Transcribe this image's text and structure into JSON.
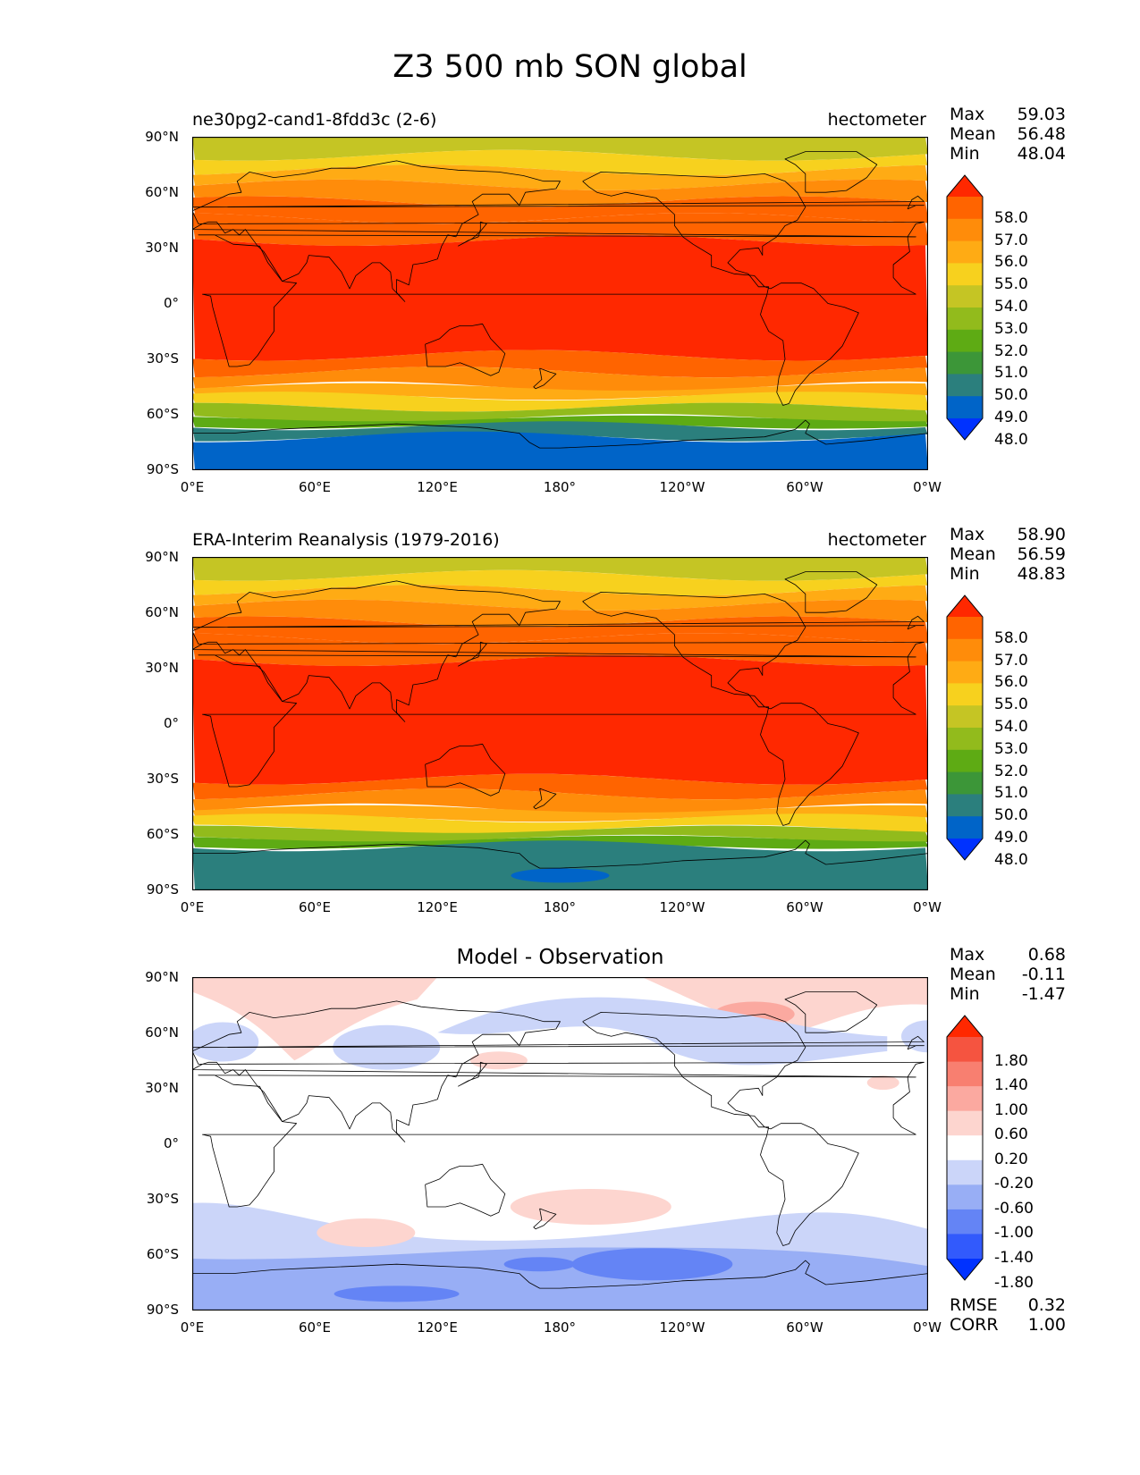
{
  "figure": {
    "title": "Z3 500 mb SON global"
  },
  "axes": {
    "lat_ticks": [
      "90°N",
      "60°N",
      "30°N",
      "0°",
      "30°S",
      "60°S",
      "90°S"
    ],
    "lon_ticks": [
      "0°E",
      "60°E",
      "120°E",
      "180°",
      "120°W",
      "60°W",
      "0°W"
    ]
  },
  "colorbars": {
    "abs": {
      "levels": [
        "58.0",
        "57.0",
        "56.0",
        "55.0",
        "54.0",
        "53.0",
        "52.0",
        "51.0",
        "50.0",
        "49.0",
        "48.0"
      ],
      "colors": [
        "#0032ff",
        "#0064c8",
        "#2b7f7d",
        "#3c9638",
        "#5eab14",
        "#92bb1c",
        "#c5c524",
        "#f7d11e",
        "#ffab14",
        "#ff8c0a",
        "#ff6400",
        "#ff2800"
      ]
    },
    "diff": {
      "levels": [
        "1.80",
        "1.40",
        "1.00",
        "0.60",
        "0.20",
        "-0.20",
        "-0.60",
        "-1.00",
        "-1.40",
        "-1.80"
      ],
      "colors": [
        "#0032ff",
        "#325afc",
        "#6484f5",
        "#98aef5",
        "#cbd5f9",
        "#ffffff",
        "#fdd5cf",
        "#fba9a0",
        "#f87f70",
        "#f55440",
        "#ff2800"
      ]
    }
  },
  "panels": [
    {
      "left_title": "ne30pg2-cand1-8fdd3c (2-6)",
      "units": "hectometer",
      "stats": {
        "max_label": "Max",
        "max": "59.03",
        "mean_label": "Mean",
        "mean": "56.48",
        "min_label": "Min",
        "min": "48.04"
      },
      "bands": [
        {
          "lat": [
            90,
            80
          ],
          "level": 6
        },
        {
          "lat": [
            80,
            72
          ],
          "level": 7
        },
        {
          "lat": [
            72,
            64
          ],
          "level": 8
        },
        {
          "lat": [
            64,
            55
          ],
          "level": 9
        },
        {
          "lat": [
            55,
            46
          ],
          "level": 10
        },
        {
          "lat": [
            46,
            34
          ],
          "level": 10
        },
        {
          "lat": [
            34,
            -28
          ],
          "level": 11
        },
        {
          "lat": [
            -28,
            -37
          ],
          "level": 10
        },
        {
          "lat": [
            -37,
            -45
          ],
          "level": 9
        },
        {
          "lat": [
            -45,
            -50
          ],
          "level": 8
        },
        {
          "lat": [
            -50,
            -56
          ],
          "level": 7
        },
        {
          "lat": [
            -56,
            -62
          ],
          "level": 5
        },
        {
          "lat": [
            -62,
            -66
          ],
          "level": 4
        },
        {
          "lat": [
            -66,
            -72
          ],
          "level": 2
        },
        {
          "lat": [
            -72,
            -90
          ],
          "level": 1
        }
      ]
    },
    {
      "left_title": "ERA-Interim Reanalysis (1979-2016)",
      "units": "hectometer",
      "stats": {
        "max_label": "Max",
        "max": "58.90",
        "mean_label": "Mean",
        "mean": "56.59",
        "min_label": "Min",
        "min": "48.83"
      },
      "bands": [
        {
          "lat": [
            90,
            80
          ],
          "level": 6
        },
        {
          "lat": [
            80,
            72
          ],
          "level": 7
        },
        {
          "lat": [
            72,
            64
          ],
          "level": 8
        },
        {
          "lat": [
            64,
            55
          ],
          "level": 9
        },
        {
          "lat": [
            55,
            46
          ],
          "level": 10
        },
        {
          "lat": [
            46,
            34
          ],
          "level": 10
        },
        {
          "lat": [
            34,
            -30
          ],
          "level": 11
        },
        {
          "lat": [
            -30,
            -38
          ],
          "level": 10
        },
        {
          "lat": [
            -38,
            -46
          ],
          "level": 9
        },
        {
          "lat": [
            -46,
            -51
          ],
          "level": 8
        },
        {
          "lat": [
            -51,
            -57
          ],
          "level": 7
        },
        {
          "lat": [
            -57,
            -62
          ],
          "level": 5
        },
        {
          "lat": [
            -62,
            -66
          ],
          "level": 4
        },
        {
          "lat": [
            -66,
            -90
          ],
          "level": 2
        }
      ]
    },
    {
      "center_title": "Model - Observation",
      "stats": {
        "max_label": "Max",
        "max": "0.68",
        "mean_label": "Mean",
        "mean": "-0.11",
        "min_label": "Min",
        "min": "-1.47"
      },
      "metrics": {
        "rmse_label": "RMSE",
        "rmse": "0.32",
        "corr_label": "CORR",
        "corr": "1.00"
      }
    }
  ]
}
